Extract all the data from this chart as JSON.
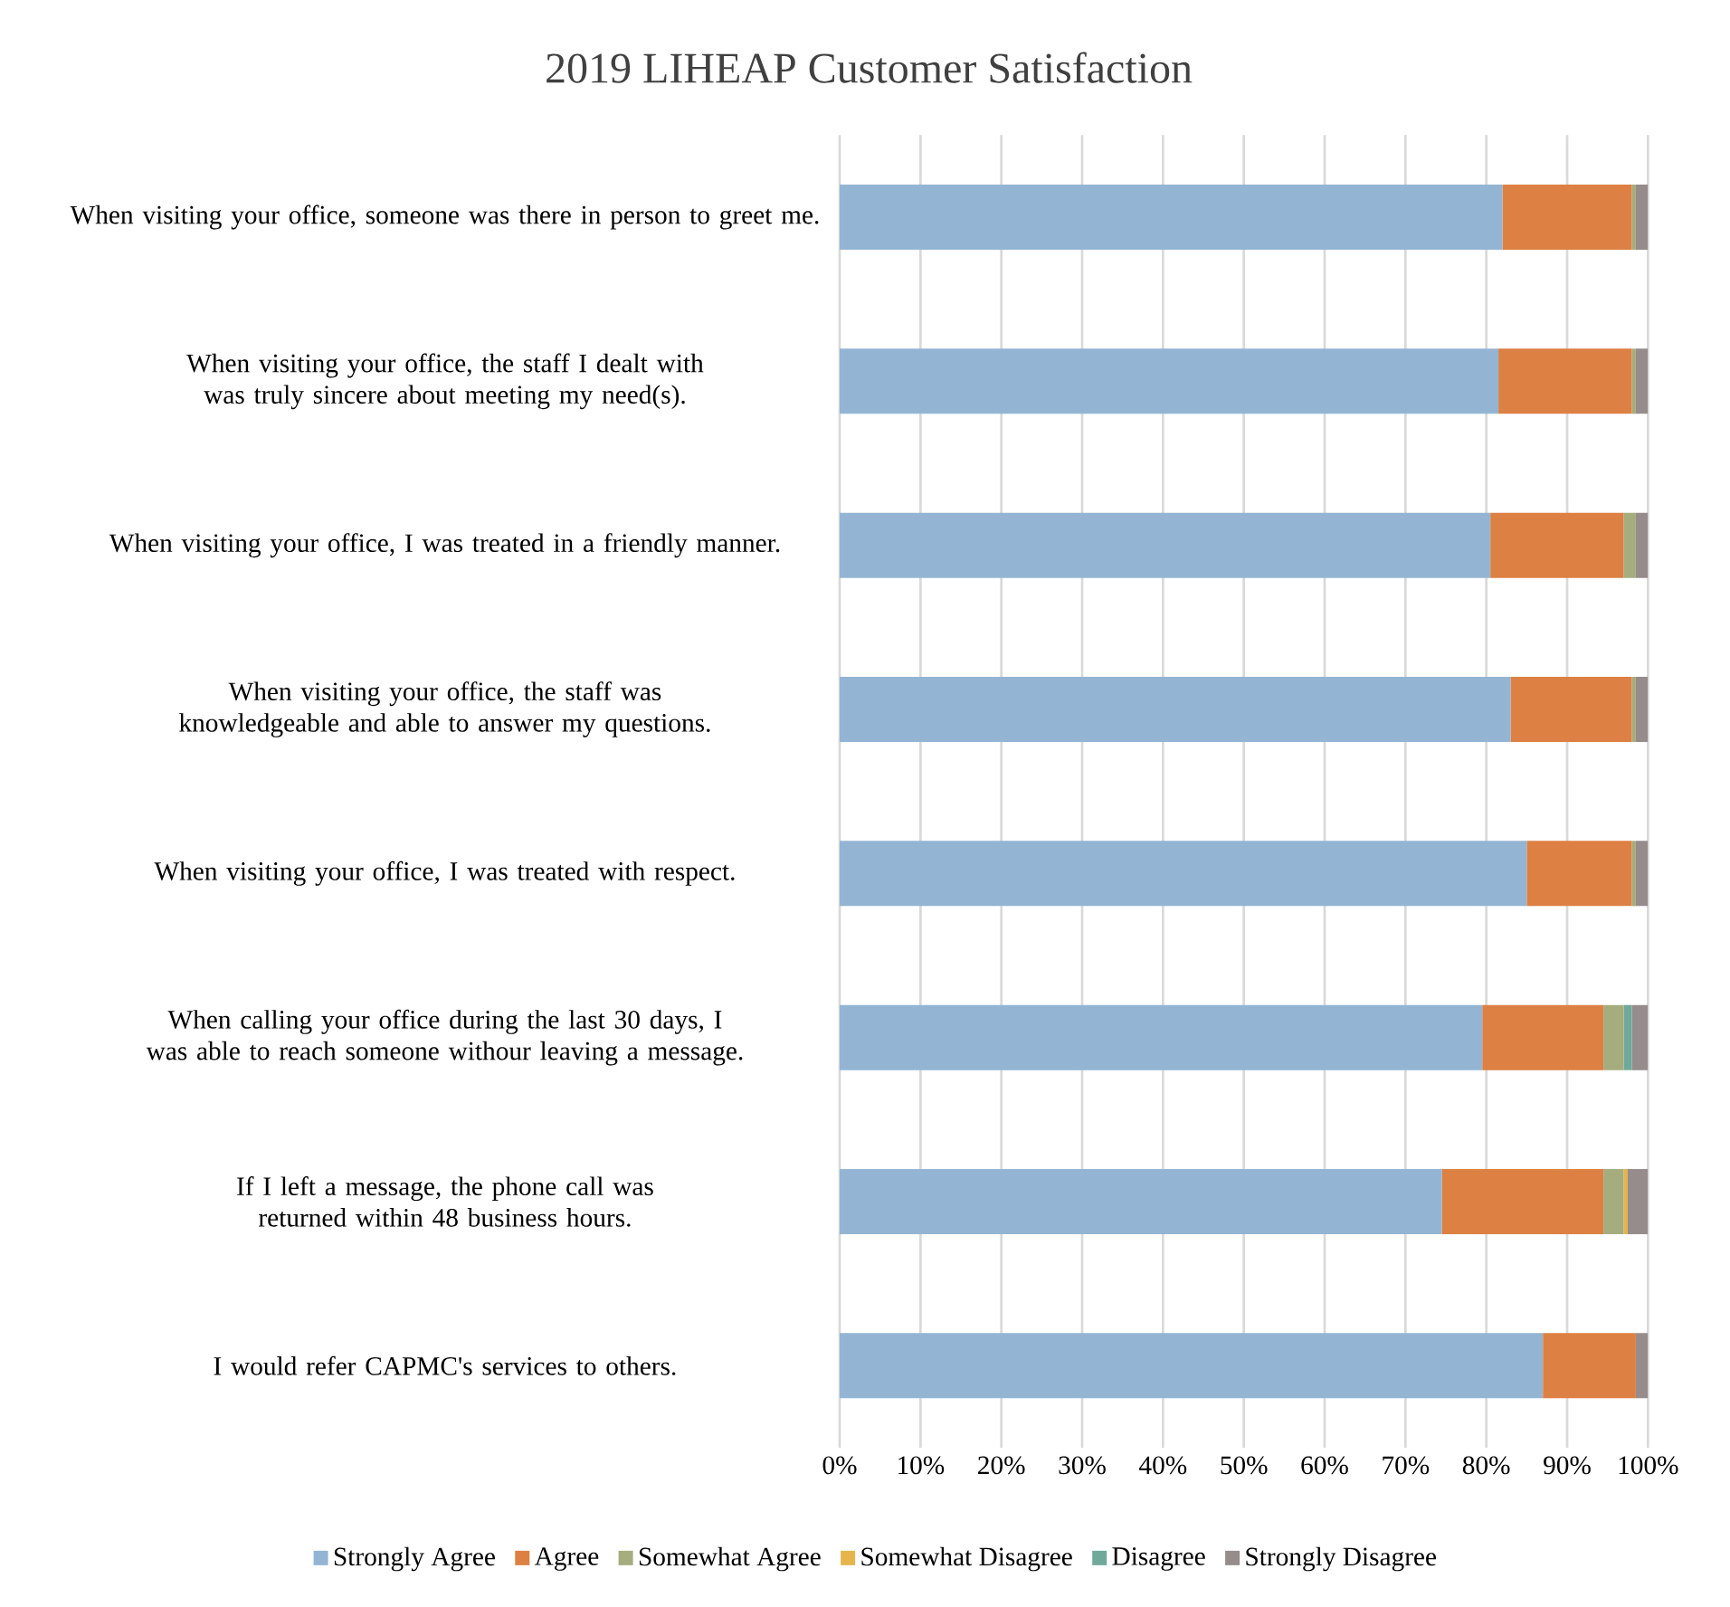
{
  "chart_data": {
    "type": "bar",
    "orientation": "horizontal",
    "stacked": true,
    "title": "2019 LIHEAP Customer Satisfaction",
    "categories": [
      "When visiting your office, someone was there in person to greet me.",
      "When visiting your office, the staff I dealt with was truly sincere about meeting my need(s).",
      "When visiting your office, I was treated in a friendly manner.",
      "When visiting your office, the staff was knowledgeable and able to answer my questions.",
      "When visiting your office, I was treated with respect.",
      "When calling your office during the last 30 days, I was able to reach someone withour leaving a message.",
      "If I left a message, the phone call was returned within 48 business hours.",
      "I would refer CAPMC's services to others."
    ],
    "series": [
      {
        "name": "Strongly Agree",
        "color": "#93b5d3",
        "values": [
          82,
          81.5,
          80.5,
          83,
          85,
          79.5,
          74.5,
          87
        ]
      },
      {
        "name": "Agree",
        "color": "#dd8043",
        "values": [
          16,
          16.5,
          16.5,
          15,
          13,
          15,
          20,
          11.5
        ]
      },
      {
        "name": "Somewhat Agree",
        "color": "#a5ad7f",
        "values": [
          0.5,
          0.5,
          1.5,
          0.5,
          0.5,
          2.5,
          2.5,
          null
        ]
      },
      {
        "name": "Somewhat Disagree",
        "color": "#e5b54b",
        "values": [
          null,
          null,
          null,
          null,
          null,
          null,
          0.5,
          null
        ]
      },
      {
        "name": "Disagree",
        "color": "#6fa99a",
        "values": [
          null,
          null,
          null,
          null,
          null,
          1,
          null,
          null
        ]
      },
      {
        "name": "Strongly Disagree",
        "color": "#968c8c",
        "values": [
          1.5,
          1.5,
          1.5,
          1.5,
          1.5,
          2,
          2.5,
          1.5
        ]
      }
    ],
    "xlim": [
      0,
      100
    ],
    "xticks": [
      {
        "value": 0,
        "label": "0%"
      },
      {
        "value": 10,
        "label": "10%"
      },
      {
        "value": 20,
        "label": "20%"
      },
      {
        "value": 30,
        "label": "30%"
      },
      {
        "value": 40,
        "label": "40%"
      },
      {
        "value": 50,
        "label": "50%"
      },
      {
        "value": 60,
        "label": "60%"
      },
      {
        "value": 70,
        "label": "70%"
      },
      {
        "value": 80,
        "label": "80%"
      },
      {
        "value": 90,
        "label": "90%"
      },
      {
        "value": 100,
        "label": "100%"
      }
    ],
    "grid": "x",
    "legend": "bottom"
  }
}
